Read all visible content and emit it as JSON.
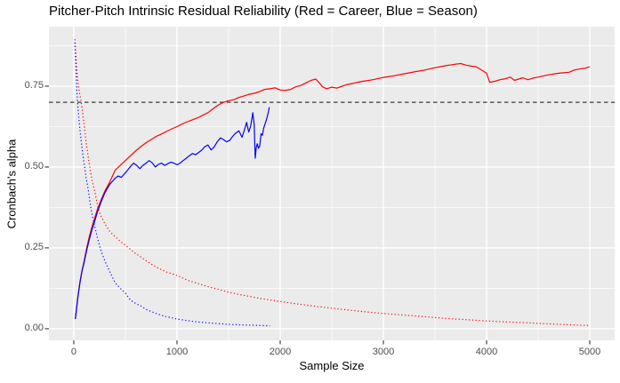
{
  "chart_data": {
    "type": "line",
    "title": "Pitcher-Pitch Intrinsic Residual Reliability (Red = Career, Blue = Season)",
    "xlabel": "Sample Size",
    "ylabel": "Cronbach's alpha",
    "xlim": [
      -241,
      5241
    ],
    "ylim": [
      -0.036,
      0.934
    ],
    "x_ticks": [
      0,
      1000,
      2000,
      3000,
      4000,
      5000
    ],
    "x_tick_labels": [
      "0",
      "1000",
      "2000",
      "3000",
      "4000",
      "5000"
    ],
    "y_ticks": [
      0.0,
      0.25,
      0.5,
      0.75
    ],
    "y_tick_labels": [
      "0.00",
      "0.25",
      "0.50",
      "0.75"
    ],
    "grid": {
      "major_color": "#FFFFFF",
      "minor_color": "#FFFFFF",
      "x_minor": [
        500,
        1500,
        2500,
        3500,
        4500
      ],
      "y_minor": [
        0.125,
        0.375,
        0.625,
        0.875
      ]
    },
    "panel_bg": "#EBEBEB",
    "figure_bg": "#FFFFFF",
    "tick_mark_color": "#333333",
    "tick_label_color": "#4D4D4D",
    "reference_line": {
      "y": 0.7,
      "style": "dashed",
      "color": "#3A3A3A"
    },
    "series": [
      {
        "name": "career-reliability",
        "legend_hint": "Red = Career",
        "color": "#FF0000",
        "style": "solid",
        "points": [
          [
            15,
            0.03
          ],
          [
            25,
            0.06
          ],
          [
            40,
            0.1
          ],
          [
            60,
            0.145
          ],
          [
            80,
            0.18
          ],
          [
            100,
            0.21
          ],
          [
            125,
            0.25
          ],
          [
            150,
            0.285
          ],
          [
            175,
            0.315
          ],
          [
            200,
            0.34
          ],
          [
            230,
            0.37
          ],
          [
            260,
            0.395
          ],
          [
            300,
            0.425
          ],
          [
            350,
            0.455
          ],
          [
            400,
            0.49
          ],
          [
            450,
            0.505
          ],
          [
            500,
            0.52
          ],
          [
            550,
            0.535
          ],
          [
            600,
            0.55
          ],
          [
            650,
            0.563
          ],
          [
            700,
            0.575
          ],
          [
            750,
            0.585
          ],
          [
            800,
            0.595
          ],
          [
            850,
            0.602
          ],
          [
            900,
            0.61
          ],
          [
            950,
            0.618
          ],
          [
            1000,
            0.625
          ],
          [
            1050,
            0.633
          ],
          [
            1100,
            0.64
          ],
          [
            1150,
            0.646
          ],
          [
            1200,
            0.652
          ],
          [
            1250,
            0.66
          ],
          [
            1300,
            0.668
          ],
          [
            1350,
            0.68
          ],
          [
            1400,
            0.692
          ],
          [
            1450,
            0.7
          ],
          [
            1500,
            0.705
          ],
          [
            1550,
            0.708
          ],
          [
            1600,
            0.715
          ],
          [
            1650,
            0.72
          ],
          [
            1700,
            0.725
          ],
          [
            1750,
            0.728
          ],
          [
            1800,
            0.733
          ],
          [
            1850,
            0.74
          ],
          [
            1900,
            0.742
          ],
          [
            1950,
            0.745
          ],
          [
            2000,
            0.738
          ],
          [
            2050,
            0.737
          ],
          [
            2100,
            0.74
          ],
          [
            2150,
            0.748
          ],
          [
            2200,
            0.752
          ],
          [
            2250,
            0.76
          ],
          [
            2300,
            0.768
          ],
          [
            2345,
            0.772
          ],
          [
            2380,
            0.76
          ],
          [
            2410,
            0.748
          ],
          [
            2450,
            0.742
          ],
          [
            2500,
            0.747
          ],
          [
            2550,
            0.744
          ],
          [
            2600,
            0.75
          ],
          [
            2650,
            0.755
          ],
          [
            2700,
            0.758
          ],
          [
            2750,
            0.762
          ],
          [
            2800,
            0.765
          ],
          [
            2900,
            0.77
          ],
          [
            3000,
            0.777
          ],
          [
            3100,
            0.782
          ],
          [
            3200,
            0.788
          ],
          [
            3300,
            0.794
          ],
          [
            3400,
            0.8
          ],
          [
            3500,
            0.807
          ],
          [
            3600,
            0.813
          ],
          [
            3700,
            0.818
          ],
          [
            3750,
            0.82
          ],
          [
            3800,
            0.815
          ],
          [
            3850,
            0.812
          ],
          [
            3900,
            0.81
          ],
          [
            3950,
            0.8
          ],
          [
            4000,
            0.79
          ],
          [
            4030,
            0.762
          ],
          [
            4080,
            0.765
          ],
          [
            4130,
            0.77
          ],
          [
            4180,
            0.773
          ],
          [
            4230,
            0.778
          ],
          [
            4270,
            0.768
          ],
          [
            4310,
            0.772
          ],
          [
            4350,
            0.776
          ],
          [
            4400,
            0.77
          ],
          [
            4450,
            0.775
          ],
          [
            4500,
            0.778
          ],
          [
            4600,
            0.785
          ],
          [
            4700,
            0.79
          ],
          [
            4800,
            0.793
          ],
          [
            4850,
            0.8
          ],
          [
            4900,
            0.803
          ],
          [
            4950,
            0.805
          ],
          [
            5000,
            0.81
          ]
        ]
      },
      {
        "name": "season-reliability",
        "legend_hint": "Blue = Season",
        "color": "#0000FF",
        "style": "solid",
        "points": [
          [
            15,
            0.03
          ],
          [
            25,
            0.058
          ],
          [
            40,
            0.098
          ],
          [
            60,
            0.142
          ],
          [
            80,
            0.178
          ],
          [
            100,
            0.205
          ],
          [
            125,
            0.243
          ],
          [
            150,
            0.276
          ],
          [
            175,
            0.305
          ],
          [
            200,
            0.33
          ],
          [
            230,
            0.362
          ],
          [
            260,
            0.388
          ],
          [
            300,
            0.42
          ],
          [
            350,
            0.447
          ],
          [
            400,
            0.465
          ],
          [
            430,
            0.472
          ],
          [
            460,
            0.468
          ],
          [
            490,
            0.478
          ],
          [
            520,
            0.49
          ],
          [
            550,
            0.502
          ],
          [
            580,
            0.512
          ],
          [
            610,
            0.505
          ],
          [
            640,
            0.495
          ],
          [
            670,
            0.505
          ],
          [
            700,
            0.512
          ],
          [
            730,
            0.52
          ],
          [
            760,
            0.513
          ],
          [
            790,
            0.5
          ],
          [
            820,
            0.508
          ],
          [
            850,
            0.512
          ],
          [
            880,
            0.505
          ],
          [
            910,
            0.51
          ],
          [
            940,
            0.515
          ],
          [
            970,
            0.512
          ],
          [
            1000,
            0.507
          ],
          [
            1030,
            0.512
          ],
          [
            1060,
            0.52
          ],
          [
            1090,
            0.527
          ],
          [
            1120,
            0.535
          ],
          [
            1150,
            0.542
          ],
          [
            1180,
            0.538
          ],
          [
            1210,
            0.545
          ],
          [
            1240,
            0.552
          ],
          [
            1270,
            0.563
          ],
          [
            1300,
            0.568
          ],
          [
            1330,
            0.553
          ],
          [
            1360,
            0.562
          ],
          [
            1390,
            0.578
          ],
          [
            1420,
            0.59
          ],
          [
            1450,
            0.585
          ],
          [
            1480,
            0.578
          ],
          [
            1510,
            0.582
          ],
          [
            1540,
            0.595
          ],
          [
            1570,
            0.605
          ],
          [
            1600,
            0.612
          ],
          [
            1630,
            0.592
          ],
          [
            1655,
            0.617
          ],
          [
            1675,
            0.638
          ],
          [
            1695,
            0.608
          ],
          [
            1715,
            0.628
          ],
          [
            1735,
            0.668
          ],
          [
            1748,
            0.63
          ],
          [
            1758,
            0.527
          ],
          [
            1768,
            0.56
          ],
          [
            1778,
            0.572
          ],
          [
            1790,
            0.558
          ],
          [
            1802,
            0.565
          ],
          [
            1815,
            0.603
          ],
          [
            1828,
            0.598
          ],
          [
            1840,
            0.62
          ],
          [
            1855,
            0.635
          ],
          [
            1870,
            0.65
          ],
          [
            1885,
            0.67
          ],
          [
            1895,
            0.685
          ]
        ]
      },
      {
        "name": "career-noise",
        "color": "#FF0000",
        "style": "dotted",
        "points": [
          [
            10,
            0.895
          ],
          [
            20,
            0.845
          ],
          [
            30,
            0.8
          ],
          [
            40,
            0.765
          ],
          [
            55,
            0.73
          ],
          [
            70,
            0.705
          ],
          [
            85,
            0.67
          ],
          [
            100,
            0.63
          ],
          [
            120,
            0.575
          ],
          [
            140,
            0.53
          ],
          [
            160,
            0.49
          ],
          [
            180,
            0.455
          ],
          [
            200,
            0.43
          ],
          [
            233,
            0.376
          ],
          [
            260,
            0.35
          ],
          [
            300,
            0.325
          ],
          [
            350,
            0.3
          ],
          [
            400,
            0.285
          ],
          [
            450,
            0.27
          ],
          [
            500,
            0.258
          ],
          [
            550,
            0.245
          ],
          [
            600,
            0.232
          ],
          [
            650,
            0.222
          ],
          [
            700,
            0.21
          ],
          [
            800,
            0.19
          ],
          [
            900,
            0.175
          ],
          [
            1000,
            0.165
          ],
          [
            1100,
            0.15
          ],
          [
            1200,
            0.14
          ],
          [
            1300,
            0.13
          ],
          [
            1400,
            0.122
          ],
          [
            1500,
            0.113
          ],
          [
            1600,
            0.106
          ],
          [
            1700,
            0.1
          ],
          [
            1800,
            0.094
          ],
          [
            2000,
            0.084
          ],
          [
            2200,
            0.075
          ],
          [
            2400,
            0.067
          ],
          [
            2600,
            0.06
          ],
          [
            2800,
            0.053
          ],
          [
            3000,
            0.047
          ],
          [
            3200,
            0.042
          ],
          [
            3400,
            0.037
          ],
          [
            3600,
            0.032
          ],
          [
            3800,
            0.028
          ],
          [
            4000,
            0.024
          ],
          [
            4200,
            0.021
          ],
          [
            4400,
            0.018
          ],
          [
            4600,
            0.015
          ],
          [
            4800,
            0.012
          ],
          [
            5000,
            0.01
          ]
        ]
      },
      {
        "name": "season-noise",
        "color": "#0000FF",
        "style": "dotted",
        "points": [
          [
            10,
            0.885
          ],
          [
            20,
            0.81
          ],
          [
            30,
            0.735
          ],
          [
            40,
            0.685
          ],
          [
            55,
            0.63
          ],
          [
            70,
            0.585
          ],
          [
            85,
            0.545
          ],
          [
            100,
            0.51
          ],
          [
            120,
            0.465
          ],
          [
            140,
            0.43
          ],
          [
            164,
            0.376
          ],
          [
            180,
            0.35
          ],
          [
            200,
            0.32
          ],
          [
            230,
            0.28
          ],
          [
            260,
            0.245
          ],
          [
            300,
            0.21
          ],
          [
            350,
            0.175
          ],
          [
            400,
            0.142
          ],
          [
            450,
            0.125
          ],
          [
            500,
            0.11
          ],
          [
            550,
            0.088
          ],
          [
            600,
            0.078
          ],
          [
            650,
            0.07
          ],
          [
            700,
            0.06
          ],
          [
            750,
            0.053
          ],
          [
            800,
            0.047
          ],
          [
            850,
            0.041
          ],
          [
            900,
            0.037
          ],
          [
            1000,
            0.03
          ],
          [
            1100,
            0.025
          ],
          [
            1200,
            0.021
          ],
          [
            1300,
            0.018
          ],
          [
            1400,
            0.016
          ],
          [
            1500,
            0.0135
          ],
          [
            1600,
            0.012
          ],
          [
            1700,
            0.011
          ],
          [
            1800,
            0.01
          ],
          [
            1900,
            0.009
          ]
        ]
      }
    ]
  }
}
